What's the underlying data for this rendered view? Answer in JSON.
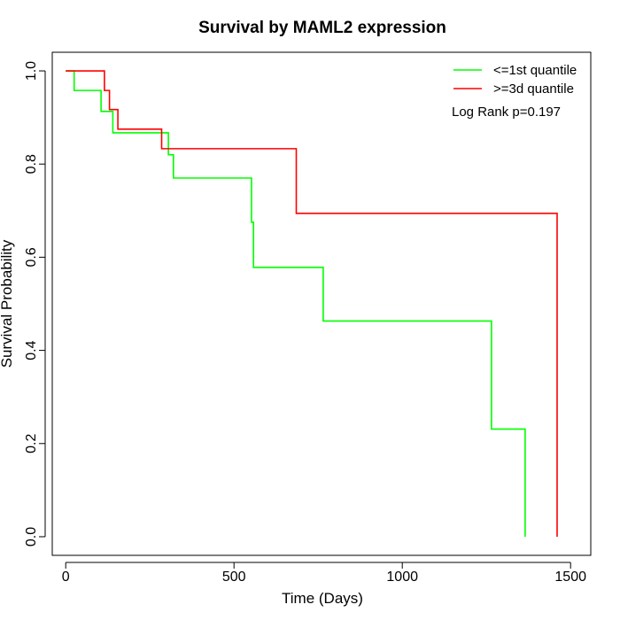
{
  "chart_data": {
    "type": "line",
    "title": "Survival by MAML2 expression",
    "xlabel": "Time (Days)",
    "ylabel": "Survival Probability",
    "xlim": [
      -40,
      1560
    ],
    "ylim": [
      -0.04,
      1.04
    ],
    "xticks": [
      0,
      500,
      1000,
      1500
    ],
    "yticks": [
      0.0,
      0.2,
      0.4,
      0.6,
      0.8,
      1.0
    ],
    "xtick_labels": [
      "0",
      "500",
      "1000",
      "1500"
    ],
    "ytick_labels": [
      "0.0",
      "0.2",
      "0.4",
      "0.6",
      "0.8",
      "1.0"
    ],
    "grid": false,
    "legend_position": "top-right",
    "annotation": "Log Rank p=0.197",
    "series": [
      {
        "name": "<=1st quantile",
        "color": "#00ff00",
        "step": true,
        "x": [
          0,
          25,
          105,
          140,
          305,
          320,
          552,
          555,
          558,
          765,
          1265,
          1365,
          1365
        ],
        "y": [
          1.0,
          0.958,
          0.913,
          0.867,
          0.82,
          0.77,
          0.675,
          0.675,
          0.578,
          0.463,
          0.231,
          0.0,
          0.0
        ]
      },
      {
        "name": ">=3d quantile",
        "color": "#ff0000",
        "step": true,
        "x": [
          0,
          115,
          130,
          155,
          285,
          685,
          1460,
          1460
        ],
        "y": [
          1.0,
          0.958,
          0.917,
          0.875,
          0.833,
          0.694,
          0.0,
          0.0
        ]
      }
    ]
  }
}
